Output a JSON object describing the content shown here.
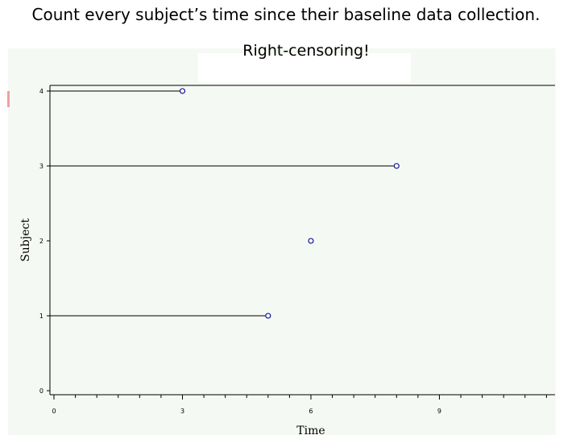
{
  "slide": {
    "title": "Count every subject’s time since their baseline data collection.",
    "subtitle": "Right-censoring!"
  },
  "chart_data": {
    "type": "scatter",
    "xlabel": "Time",
    "ylabel": "Subject",
    "xlim": [
      0,
      11.7
    ],
    "ylim": [
      0,
      4
    ],
    "x_ticks": [
      0,
      3,
      6,
      9
    ],
    "y_ticks": [
      0,
      1,
      2,
      3,
      4
    ],
    "grid": false,
    "marker": "open-circle",
    "colors": {
      "marker": "#00008b",
      "line": "#000000",
      "background": "#f5f9f3"
    },
    "subjects": [
      {
        "subject": 1,
        "time": 5,
        "line_from": 0
      },
      {
        "subject": 2,
        "time": 6,
        "line_from": null
      },
      {
        "subject": 3,
        "time": 8,
        "line_from": 0
      },
      {
        "subject": 4,
        "time": 3,
        "line_from": 0
      }
    ]
  }
}
